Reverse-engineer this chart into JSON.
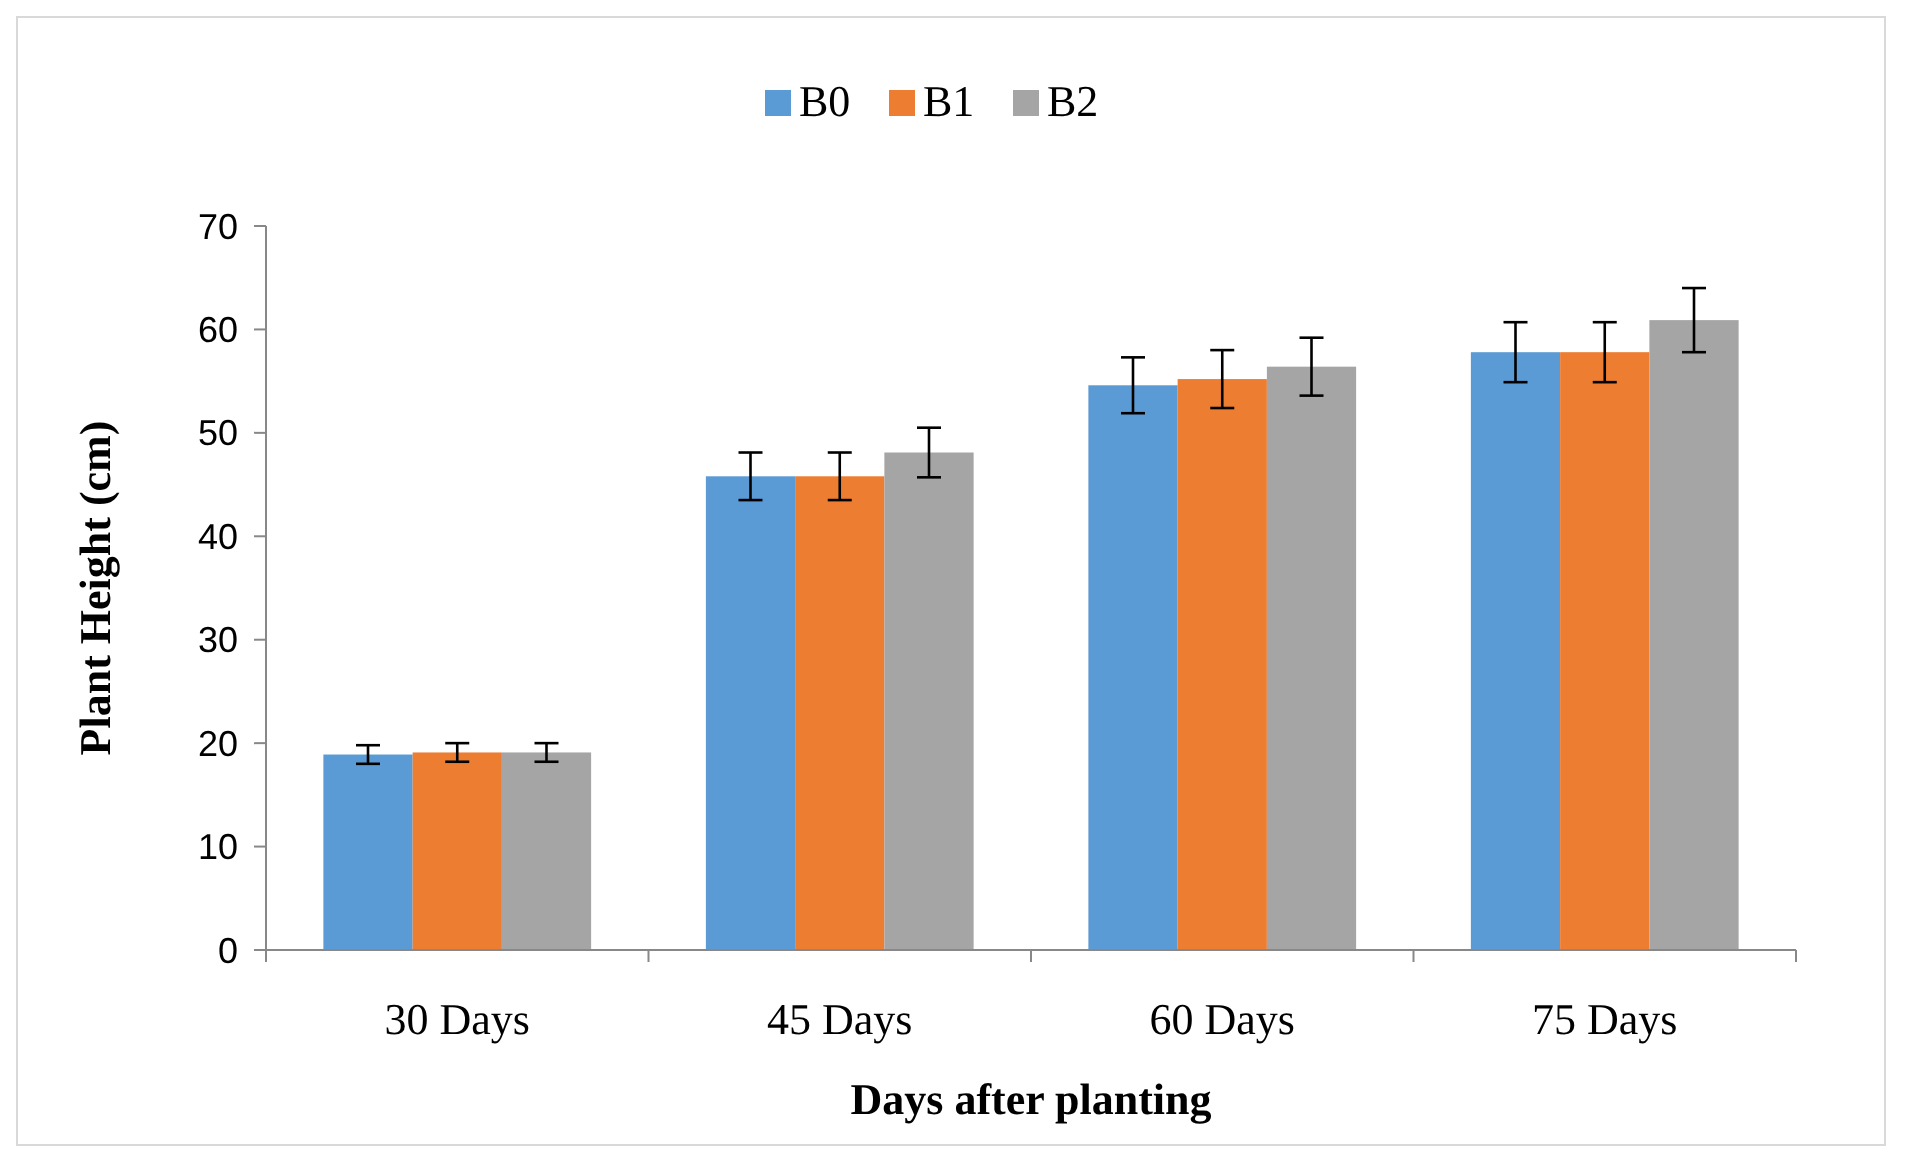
{
  "chart_data": {
    "type": "bar",
    "xlabel": "Days after planting",
    "ylabel": "Plant Height (cm)",
    "categories": [
      "30 Days",
      "45 Days",
      "60 Days",
      "75 Days"
    ],
    "series": [
      {
        "name": "B0",
        "color": "#5b9bd5",
        "values": [
          18.9,
          45.8,
          54.6,
          57.8
        ],
        "errors": [
          0.9,
          2.3,
          2.7,
          2.9
        ]
      },
      {
        "name": "B1",
        "color": "#ed7d31",
        "values": [
          19.1,
          45.8,
          55.2,
          57.8
        ],
        "errors": [
          0.9,
          2.3,
          2.8,
          2.9
        ]
      },
      {
        "name": "B2",
        "color": "#a5a5a5",
        "values": [
          19.1,
          48.1,
          56.4,
          60.9
        ],
        "errors": [
          0.9,
          2.4,
          2.8,
          3.1
        ]
      }
    ],
    "ylim": [
      0,
      70
    ],
    "yticks": [
      0,
      10,
      20,
      30,
      40,
      50,
      60,
      70
    ],
    "grid": false,
    "legend": "top"
  }
}
